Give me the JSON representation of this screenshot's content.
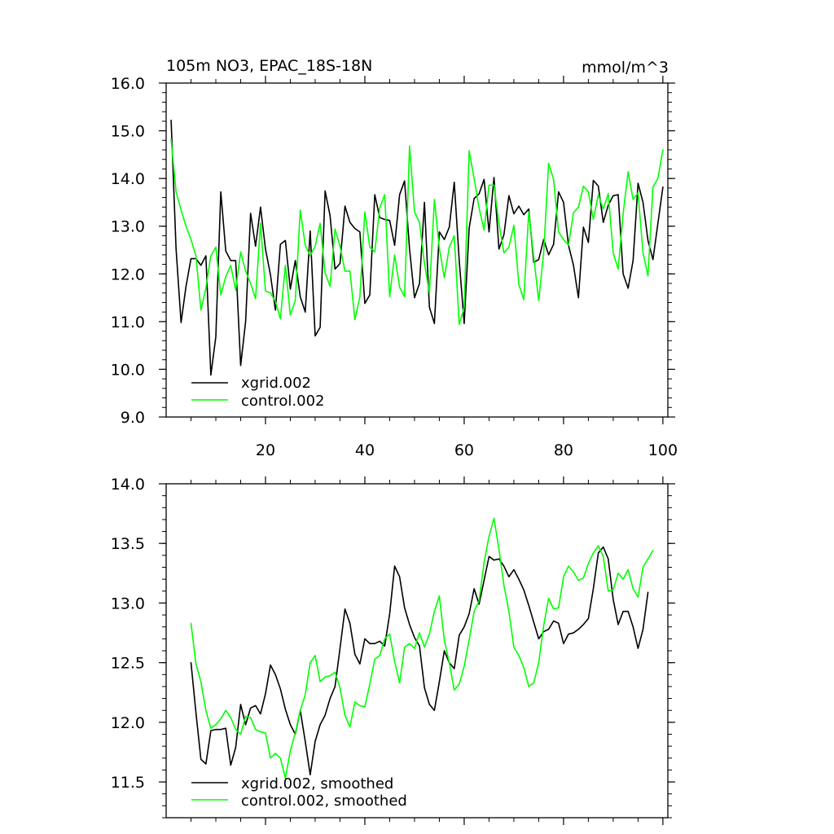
{
  "chart_data": [
    {
      "type": "line",
      "title": "105m NO3, EPAC_18S-18N",
      "units_label": "mmol/m^3",
      "xlabel": "",
      "ylabel": "",
      "xlim": [
        0,
        101
      ],
      "ylim": [
        9.0,
        16.0
      ],
      "yticks": [
        9.0,
        10.0,
        11.0,
        12.0,
        13.0,
        14.0,
        15.0,
        16.0
      ],
      "ytick_labels": [
        "9.0",
        "10.0",
        "11.0",
        "12.0",
        "13.0",
        "14.0",
        "15.0",
        "16.0"
      ],
      "xticks": [
        20,
        40,
        60,
        80,
        100
      ],
      "xtick_labels": [
        "20",
        "40",
        "60",
        "80",
        "100"
      ],
      "legend_position": "bottom-left",
      "series": [
        {
          "name": "xgrid.002",
          "color": "#000000",
          "x_start": 1,
          "values": [
            15.22,
            12.52,
            10.98,
            11.74,
            12.32,
            12.32,
            12.18,
            12.38,
            9.88,
            10.68,
            13.72,
            12.48,
            12.28,
            12.28,
            10.08,
            11.0,
            13.27,
            12.58,
            13.4,
            12.52,
            11.98,
            11.24,
            12.62,
            12.7,
            11.68,
            12.28,
            11.52,
            11.2,
            12.9,
            10.7,
            10.88,
            13.74,
            13.22,
            12.1,
            12.22,
            13.42,
            13.08,
            12.95,
            12.88,
            11.38,
            11.56,
            13.66,
            13.18,
            13.14,
            13.12,
            12.6,
            13.66,
            13.95,
            12.52,
            11.5,
            11.8,
            13.5,
            11.3,
            10.96,
            12.88,
            12.72,
            12.98,
            13.92,
            12.28,
            10.96,
            12.96,
            13.58,
            13.68,
            13.98,
            12.88,
            14.02,
            12.52,
            12.82,
            13.64,
            13.26,
            13.42,
            13.24,
            13.36,
            12.24,
            12.3,
            12.72,
            12.4,
            12.62,
            13.72,
            13.5,
            12.6,
            12.18,
            11.5,
            12.98,
            12.66,
            13.96,
            13.84,
            13.08,
            13.44,
            13.64,
            13.66,
            12.0,
            11.7,
            12.28,
            13.9,
            13.5,
            12.7,
            12.3,
            13.06,
            13.82
          ]
        },
        {
          "name": "control.002",
          "color": "#00ff00",
          "x_start": 1,
          "values": [
            14.82,
            13.72,
            13.34,
            13.0,
            12.72,
            12.38,
            11.24,
            11.7,
            12.38,
            12.56,
            11.56,
            11.94,
            12.18,
            11.66,
            12.46,
            12.06,
            11.8,
            11.48,
            13.06,
            11.64,
            11.6,
            11.42,
            11.06,
            12.18,
            11.14,
            11.44,
            13.34,
            12.6,
            12.38,
            12.58,
            13.06,
            12.02,
            11.74,
            12.94,
            12.58,
            12.06,
            12.06,
            11.04,
            11.52,
            13.3,
            12.56,
            12.46,
            13.38,
            13.66,
            11.52,
            12.4,
            11.72,
            11.52,
            14.68,
            13.3,
            13.08,
            12.22,
            11.6,
            13.56,
            12.54,
            11.92,
            12.56,
            12.8,
            10.94,
            11.3,
            14.58,
            14.0,
            13.38,
            12.92,
            13.86,
            13.86,
            13.06,
            12.44,
            12.56,
            13.02,
            11.78,
            11.46,
            13.3,
            12.36,
            11.44,
            12.44,
            14.32,
            13.98,
            12.88,
            12.72,
            12.6,
            13.28,
            13.4,
            13.84,
            13.72,
            13.14,
            13.66,
            13.36,
            13.68,
            12.44,
            12.1,
            13.26,
            14.14,
            13.56,
            13.7,
            12.44,
            11.96,
            13.82,
            14.0,
            14.6
          ]
        }
      ]
    },
    {
      "type": "line",
      "title": "",
      "xlabel": "",
      "ylabel": "",
      "xlim": [
        0,
        101
      ],
      "ylim": [
        11.2,
        14.0
      ],
      "yticks": [
        11.5,
        12.0,
        12.5,
        13.0,
        13.5,
        14.0
      ],
      "ytick_labels": [
        "11.5",
        "12.0",
        "12.5",
        "13.0",
        "13.5",
        "14.0"
      ],
      "xticks": [
        20,
        40,
        60,
        80,
        100
      ],
      "xtick_labels": [],
      "legend_position": "bottom-left",
      "series": [
        {
          "name": "xgrid.002, smoothed",
          "color": "#000000",
          "x_start": 5,
          "values": [
            12.5,
            12.08,
            11.69,
            11.65,
            11.93,
            11.94,
            11.94,
            11.95,
            11.64,
            11.79,
            12.15,
            11.98,
            12.12,
            12.14,
            12.07,
            12.24,
            12.48,
            12.4,
            12.28,
            12.11,
            11.98,
            11.9,
            12.1,
            11.84,
            11.56,
            11.84,
            11.98,
            12.06,
            12.2,
            12.3,
            12.62,
            12.95,
            12.83,
            12.57,
            12.49,
            12.7,
            12.66,
            12.66,
            12.68,
            12.64,
            12.91,
            13.31,
            13.22,
            12.96,
            12.82,
            12.71,
            12.64,
            12.29,
            12.15,
            12.1,
            12.34,
            12.6,
            12.5,
            12.45,
            12.73,
            12.8,
            12.91,
            13.12,
            12.99,
            13.19,
            13.39,
            13.36,
            13.37,
            13.31,
            13.22,
            13.28,
            13.2,
            13.11,
            12.98,
            12.84,
            12.7,
            12.76,
            12.78,
            12.85,
            12.83,
            12.66,
            12.74,
            12.75,
            12.78,
            12.82,
            12.87,
            13.12,
            13.42,
            13.47,
            13.37,
            13.03,
            12.82,
            12.93,
            12.93,
            12.8,
            12.62,
            12.78,
            13.09
          ]
        },
        {
          "name": "control.002, smoothed",
          "color": "#00ff00",
          "x_start": 5,
          "values": [
            12.83,
            12.49,
            12.34,
            12.1,
            11.95,
            11.98,
            12.03,
            12.1,
            12.04,
            11.94,
            11.9,
            12.05,
            12.04,
            11.94,
            11.92,
            11.91,
            11.7,
            11.74,
            11.7,
            11.53,
            11.76,
            11.91,
            12.1,
            12.23,
            12.5,
            12.56,
            12.34,
            12.38,
            12.39,
            12.42,
            12.29,
            12.06,
            11.96,
            12.17,
            12.14,
            12.13,
            12.32,
            12.53,
            12.56,
            12.7,
            12.74,
            12.51,
            12.33,
            12.63,
            12.66,
            12.62,
            12.75,
            12.63,
            12.74,
            12.93,
            13.06,
            12.69,
            12.5,
            12.27,
            12.32,
            12.47,
            12.69,
            12.93,
            13.02,
            13.34,
            13.56,
            13.71,
            13.45,
            13.15,
            12.93,
            12.63,
            12.56,
            12.46,
            12.3,
            12.33,
            12.5,
            12.81,
            13.04,
            12.95,
            12.96,
            13.22,
            13.31,
            13.26,
            13.19,
            13.21,
            13.33,
            13.42,
            13.48,
            13.39,
            13.1,
            13.11,
            13.25,
            13.2,
            13.28,
            13.12,
            13.05,
            13.3,
            13.37,
            13.44
          ]
        }
      ]
    }
  ]
}
